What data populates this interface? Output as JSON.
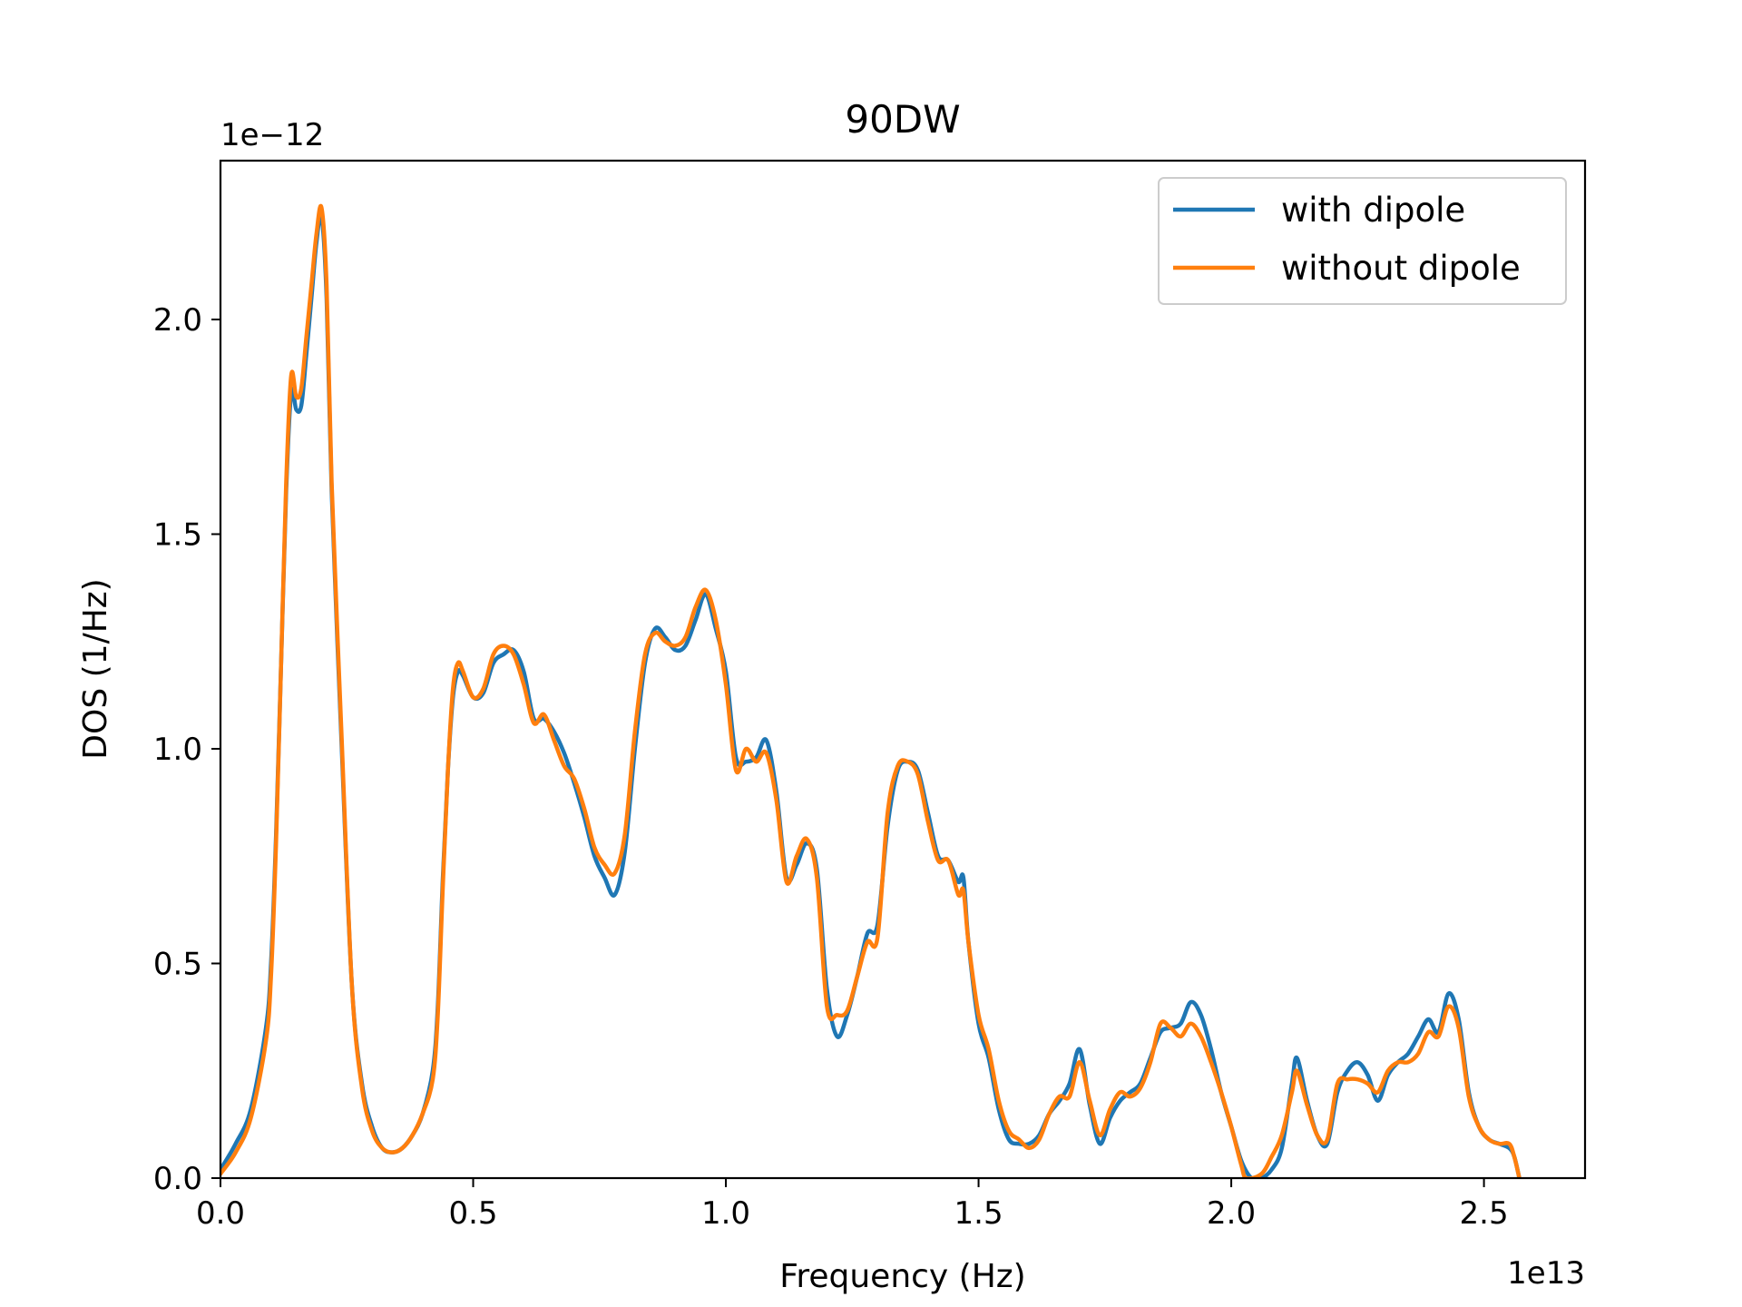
{
  "chart_data": {
    "type": "line",
    "title": "90DW",
    "xlabel": "Frequency (Hz)",
    "ylabel": "DOS (1/Hz)",
    "x_offset_label": "1e13",
    "y_offset_label": "1e−12",
    "xlim": [
      0,
      2.7
    ],
    "ylim": [
      0,
      2.37
    ],
    "x_ticks": [
      0,
      0.5,
      1.0,
      1.5,
      2.0,
      2.5
    ],
    "x_tick_labels": [
      "0.0",
      "0.5",
      "1.0",
      "1.5",
      "2.0",
      "2.5"
    ],
    "y_ticks": [
      0,
      0.5,
      1.0,
      1.5,
      2.0
    ],
    "y_tick_labels": [
      "0.0",
      "0.5",
      "1.0",
      "1.5",
      "2.0"
    ],
    "grid": false,
    "legend_position": "top-right",
    "series": [
      {
        "name": "with dipole",
        "color": "#1f77b4",
        "points": [
          [
            0.0,
            0.02
          ],
          [
            0.03,
            0.08
          ],
          [
            0.06,
            0.16
          ],
          [
            0.09,
            0.35
          ],
          [
            0.1,
            0.5
          ],
          [
            0.11,
            0.8
          ],
          [
            0.12,
            1.2
          ],
          [
            0.13,
            1.6
          ],
          [
            0.14,
            1.83
          ],
          [
            0.15,
            1.79
          ],
          [
            0.16,
            1.8
          ],
          [
            0.17,
            1.92
          ],
          [
            0.18,
            2.05
          ],
          [
            0.19,
            2.18
          ],
          [
            0.2,
            2.24
          ],
          [
            0.21,
            2.05
          ],
          [
            0.22,
            1.6
          ],
          [
            0.24,
            1.0
          ],
          [
            0.26,
            0.45
          ],
          [
            0.28,
            0.22
          ],
          [
            0.3,
            0.12
          ],
          [
            0.32,
            0.07
          ],
          [
            0.34,
            0.06
          ],
          [
            0.36,
            0.07
          ],
          [
            0.38,
            0.1
          ],
          [
            0.4,
            0.15
          ],
          [
            0.42,
            0.25
          ],
          [
            0.43,
            0.4
          ],
          [
            0.44,
            0.7
          ],
          [
            0.45,
            0.95
          ],
          [
            0.46,
            1.12
          ],
          [
            0.47,
            1.18
          ],
          [
            0.48,
            1.17
          ],
          [
            0.5,
            1.12
          ],
          [
            0.52,
            1.13
          ],
          [
            0.54,
            1.2
          ],
          [
            0.56,
            1.22
          ],
          [
            0.58,
            1.23
          ],
          [
            0.6,
            1.18
          ],
          [
            0.62,
            1.07
          ],
          [
            0.64,
            1.07
          ],
          [
            0.66,
            1.04
          ],
          [
            0.68,
            0.99
          ],
          [
            0.7,
            0.92
          ],
          [
            0.72,
            0.84
          ],
          [
            0.74,
            0.75
          ],
          [
            0.76,
            0.7
          ],
          [
            0.78,
            0.66
          ],
          [
            0.8,
            0.76
          ],
          [
            0.82,
            1.0
          ],
          [
            0.84,
            1.2
          ],
          [
            0.86,
            1.28
          ],
          [
            0.88,
            1.26
          ],
          [
            0.9,
            1.23
          ],
          [
            0.92,
            1.24
          ],
          [
            0.94,
            1.3
          ],
          [
            0.96,
            1.36
          ],
          [
            0.98,
            1.28
          ],
          [
            1.0,
            1.18
          ],
          [
            1.02,
            0.98
          ],
          [
            1.04,
            0.97
          ],
          [
            1.06,
            0.98
          ],
          [
            1.08,
            1.02
          ],
          [
            1.1,
            0.9
          ],
          [
            1.12,
            0.7
          ],
          [
            1.14,
            0.73
          ],
          [
            1.16,
            0.78
          ],
          [
            1.18,
            0.72
          ],
          [
            1.2,
            0.44
          ],
          [
            1.22,
            0.33
          ],
          [
            1.24,
            0.38
          ],
          [
            1.26,
            0.47
          ],
          [
            1.28,
            0.57
          ],
          [
            1.3,
            0.59
          ],
          [
            1.32,
            0.82
          ],
          [
            1.34,
            0.95
          ],
          [
            1.36,
            0.97
          ],
          [
            1.38,
            0.95
          ],
          [
            1.4,
            0.85
          ],
          [
            1.42,
            0.75
          ],
          [
            1.44,
            0.74
          ],
          [
            1.46,
            0.69
          ],
          [
            1.47,
            0.7
          ],
          [
            1.48,
            0.55
          ],
          [
            1.5,
            0.36
          ],
          [
            1.52,
            0.28
          ],
          [
            1.54,
            0.16
          ],
          [
            1.56,
            0.09
          ],
          [
            1.58,
            0.08
          ],
          [
            1.6,
            0.08
          ],
          [
            1.62,
            0.1
          ],
          [
            1.64,
            0.15
          ],
          [
            1.66,
            0.18
          ],
          [
            1.68,
            0.22
          ],
          [
            1.7,
            0.3
          ],
          [
            1.72,
            0.17
          ],
          [
            1.74,
            0.08
          ],
          [
            1.76,
            0.14
          ],
          [
            1.78,
            0.18
          ],
          [
            1.8,
            0.2
          ],
          [
            1.82,
            0.22
          ],
          [
            1.84,
            0.28
          ],
          [
            1.86,
            0.34
          ],
          [
            1.88,
            0.35
          ],
          [
            1.9,
            0.36
          ],
          [
            1.92,
            0.41
          ],
          [
            1.94,
            0.38
          ],
          [
            1.96,
            0.3
          ],
          [
            1.98,
            0.2
          ],
          [
            2.0,
            0.12
          ],
          [
            2.02,
            0.04
          ],
          [
            2.04,
            0.0
          ],
          [
            2.06,
            0.0
          ],
          [
            2.08,
            0.02
          ],
          [
            2.1,
            0.07
          ],
          [
            2.12,
            0.22
          ],
          [
            2.13,
            0.28
          ],
          [
            2.15,
            0.18
          ],
          [
            2.17,
            0.1
          ],
          [
            2.19,
            0.08
          ],
          [
            2.21,
            0.2
          ],
          [
            2.23,
            0.25
          ],
          [
            2.25,
            0.27
          ],
          [
            2.27,
            0.24
          ],
          [
            2.29,
            0.18
          ],
          [
            2.31,
            0.24
          ],
          [
            2.33,
            0.27
          ],
          [
            2.35,
            0.29
          ],
          [
            2.37,
            0.33
          ],
          [
            2.39,
            0.37
          ],
          [
            2.41,
            0.34
          ],
          [
            2.43,
            0.43
          ],
          [
            2.45,
            0.37
          ],
          [
            2.47,
            0.2
          ],
          [
            2.49,
            0.12
          ],
          [
            2.51,
            0.09
          ],
          [
            2.53,
            0.08
          ],
          [
            2.55,
            0.07
          ],
          [
            2.56,
            0.05
          ],
          [
            2.57,
            0.0
          ]
        ]
      },
      {
        "name": "without dipole",
        "color": "#ff7f0e",
        "points": [
          [
            0.0,
            0.01
          ],
          [
            0.03,
            0.06
          ],
          [
            0.06,
            0.14
          ],
          [
            0.09,
            0.32
          ],
          [
            0.1,
            0.47
          ],
          [
            0.11,
            0.78
          ],
          [
            0.12,
            1.2
          ],
          [
            0.13,
            1.62
          ],
          [
            0.14,
            1.87
          ],
          [
            0.15,
            1.82
          ],
          [
            0.16,
            1.84
          ],
          [
            0.17,
            1.96
          ],
          [
            0.18,
            2.08
          ],
          [
            0.19,
            2.2
          ],
          [
            0.2,
            2.26
          ],
          [
            0.21,
            2.08
          ],
          [
            0.22,
            1.62
          ],
          [
            0.24,
            1.02
          ],
          [
            0.26,
            0.45
          ],
          [
            0.28,
            0.21
          ],
          [
            0.3,
            0.11
          ],
          [
            0.32,
            0.07
          ],
          [
            0.34,
            0.06
          ],
          [
            0.36,
            0.07
          ],
          [
            0.38,
            0.1
          ],
          [
            0.4,
            0.15
          ],
          [
            0.42,
            0.23
          ],
          [
            0.43,
            0.38
          ],
          [
            0.44,
            0.68
          ],
          [
            0.45,
            0.95
          ],
          [
            0.46,
            1.14
          ],
          [
            0.47,
            1.2
          ],
          [
            0.48,
            1.18
          ],
          [
            0.5,
            1.12
          ],
          [
            0.52,
            1.14
          ],
          [
            0.54,
            1.22
          ],
          [
            0.56,
            1.24
          ],
          [
            0.58,
            1.22
          ],
          [
            0.6,
            1.15
          ],
          [
            0.62,
            1.06
          ],
          [
            0.64,
            1.08
          ],
          [
            0.66,
            1.02
          ],
          [
            0.68,
            0.96
          ],
          [
            0.7,
            0.93
          ],
          [
            0.72,
            0.86
          ],
          [
            0.74,
            0.77
          ],
          [
            0.76,
            0.73
          ],
          [
            0.78,
            0.71
          ],
          [
            0.8,
            0.8
          ],
          [
            0.82,
            1.04
          ],
          [
            0.84,
            1.22
          ],
          [
            0.86,
            1.27
          ],
          [
            0.88,
            1.25
          ],
          [
            0.9,
            1.24
          ],
          [
            0.92,
            1.26
          ],
          [
            0.94,
            1.33
          ],
          [
            0.96,
            1.37
          ],
          [
            0.98,
            1.3
          ],
          [
            1.0,
            1.15
          ],
          [
            1.02,
            0.95
          ],
          [
            1.04,
            1.0
          ],
          [
            1.06,
            0.97
          ],
          [
            1.08,
            0.99
          ],
          [
            1.1,
            0.88
          ],
          [
            1.12,
            0.69
          ],
          [
            1.14,
            0.75
          ],
          [
            1.16,
            0.79
          ],
          [
            1.18,
            0.7
          ],
          [
            1.2,
            0.4
          ],
          [
            1.22,
            0.38
          ],
          [
            1.24,
            0.39
          ],
          [
            1.26,
            0.47
          ],
          [
            1.28,
            0.55
          ],
          [
            1.3,
            0.56
          ],
          [
            1.32,
            0.85
          ],
          [
            1.34,
            0.96
          ],
          [
            1.36,
            0.97
          ],
          [
            1.38,
            0.94
          ],
          [
            1.4,
            0.83
          ],
          [
            1.42,
            0.74
          ],
          [
            1.44,
            0.74
          ],
          [
            1.46,
            0.66
          ],
          [
            1.47,
            0.67
          ],
          [
            1.48,
            0.55
          ],
          [
            1.5,
            0.38
          ],
          [
            1.52,
            0.3
          ],
          [
            1.54,
            0.18
          ],
          [
            1.56,
            0.11
          ],
          [
            1.58,
            0.09
          ],
          [
            1.6,
            0.07
          ],
          [
            1.62,
            0.09
          ],
          [
            1.64,
            0.15
          ],
          [
            1.66,
            0.19
          ],
          [
            1.68,
            0.19
          ],
          [
            1.7,
            0.27
          ],
          [
            1.72,
            0.18
          ],
          [
            1.74,
            0.1
          ],
          [
            1.76,
            0.16
          ],
          [
            1.78,
            0.2
          ],
          [
            1.8,
            0.19
          ],
          [
            1.82,
            0.21
          ],
          [
            1.84,
            0.27
          ],
          [
            1.86,
            0.36
          ],
          [
            1.88,
            0.35
          ],
          [
            1.9,
            0.33
          ],
          [
            1.92,
            0.36
          ],
          [
            1.94,
            0.33
          ],
          [
            1.96,
            0.27
          ],
          [
            1.98,
            0.2
          ],
          [
            2.0,
            0.12
          ],
          [
            2.02,
            0.03
          ],
          [
            2.03,
            0.0
          ],
          [
            2.06,
            0.01
          ],
          [
            2.08,
            0.05
          ],
          [
            2.1,
            0.1
          ],
          [
            2.12,
            0.2
          ],
          [
            2.13,
            0.25
          ],
          [
            2.15,
            0.17
          ],
          [
            2.17,
            0.1
          ],
          [
            2.19,
            0.09
          ],
          [
            2.21,
            0.22
          ],
          [
            2.23,
            0.23
          ],
          [
            2.25,
            0.23
          ],
          [
            2.27,
            0.22
          ],
          [
            2.29,
            0.2
          ],
          [
            2.31,
            0.25
          ],
          [
            2.33,
            0.27
          ],
          [
            2.35,
            0.27
          ],
          [
            2.37,
            0.29
          ],
          [
            2.39,
            0.34
          ],
          [
            2.41,
            0.33
          ],
          [
            2.43,
            0.4
          ],
          [
            2.45,
            0.35
          ],
          [
            2.47,
            0.19
          ],
          [
            2.49,
            0.12
          ],
          [
            2.51,
            0.09
          ],
          [
            2.53,
            0.08
          ],
          [
            2.55,
            0.08
          ],
          [
            2.56,
            0.05
          ],
          [
            2.57,
            0.0
          ]
        ]
      }
    ]
  }
}
